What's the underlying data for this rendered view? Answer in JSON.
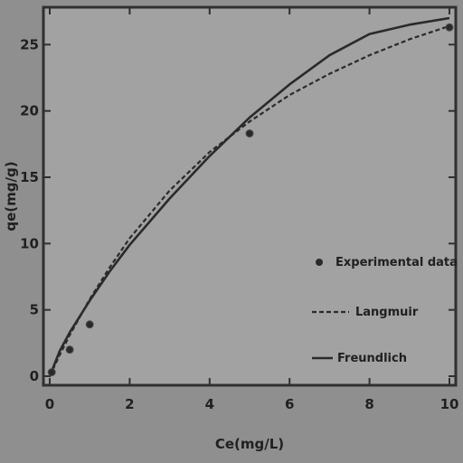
{
  "chart_data": {
    "type": "scatter",
    "title": "",
    "xlabel": "Ce(mg/L)",
    "ylabel": "qe(mg/g)",
    "xlim": [
      0,
      10
    ],
    "ylim": [
      0,
      27
    ],
    "xticks": [
      "0",
      "2",
      "4",
      "6",
      "8",
      "10"
    ],
    "yticks": [
      "0",
      "5",
      "10",
      "15",
      "20",
      "25"
    ],
    "grid": false,
    "legend_position": "right",
    "colors": {
      "background": "#8f8f8f",
      "plot_background": "#a2a2a2",
      "axis": "#303030",
      "data": "#2a2a2a"
    },
    "series": [
      {
        "name": "Experimental data",
        "kind": "points",
        "x": [
          0.05,
          0.5,
          1.0,
          5.0,
          10.0
        ],
        "y": [
          0.3,
          2.0,
          3.9,
          18.3,
          26.3
        ]
      },
      {
        "name": "Langmuir",
        "kind": "line",
        "style": "dashed",
        "x": [
          0,
          0.25,
          0.5,
          1,
          1.5,
          2,
          3,
          4,
          5,
          6,
          7,
          8,
          9,
          10
        ],
        "y": [
          0,
          1.6,
          3.1,
          5.8,
          8.2,
          10.4,
          14.0,
          16.9,
          19.2,
          21.2,
          22.8,
          24.2,
          25.4,
          26.4
        ]
      },
      {
        "name": "Freundlich",
        "kind": "line",
        "style": "solid",
        "x": [
          0,
          0.25,
          0.5,
          1,
          1.5,
          2,
          3,
          4,
          5,
          6,
          7,
          8,
          9,
          10
        ],
        "y": [
          0,
          1.9,
          3.3,
          5.7,
          7.9,
          9.9,
          13.4,
          16.6,
          19.5,
          22.0,
          24.2,
          25.8,
          26.5,
          27.0
        ]
      }
    ]
  }
}
